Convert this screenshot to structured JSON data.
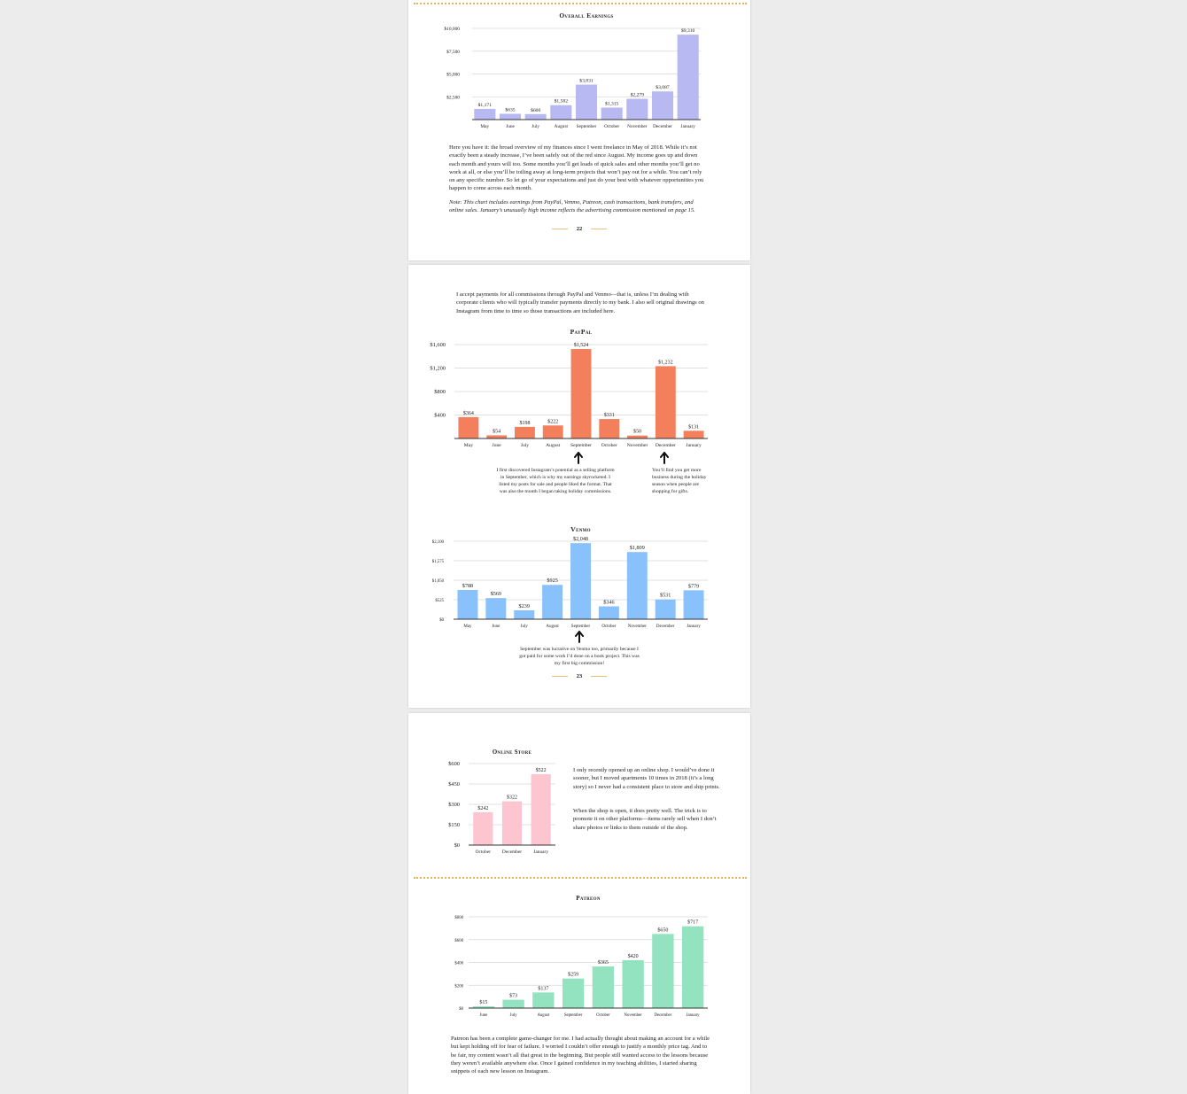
{
  "colors": {
    "overall": "#b8b9f2",
    "paypal": "#f37f5c",
    "venmo": "#88c1fc",
    "online_store": "#fdc5cf",
    "patreon": "#93e3c1",
    "dotted_rule": "#e3b65a",
    "page_rule": "#e6c27a"
  },
  "pages": [
    {
      "number": "22",
      "paragraph": "Here you have it: the broad overview of my finances since I went freelance in May of 2018. While it’s not exactly been a steady increase, I’ve been safely out of the red since August. My income goes up and down each month and yours will too. Some months you’ll get loads of quick sales and other months you’ll get no work at all, or else you’ll be toiling away at long-term projects that won’t pay out for a while. You can’t rely on any specific number. So let go of your expectations and just do your best with whatever opportunities you happen to come across each month.",
      "note": "Note: This chart includes earnings from PayPal, Venmo, Patreon, cash transactions, bank transfers, and online sales. January’s unusually high income reflects the advertising commission mentioned on page 15."
    },
    {
      "number": "23",
      "intro": "I accept payments for all commissions through PayPal and Venmo—that is, unless I’m dealing with corporate clients who will typically transfer payments directly to my bank. I also sell original drawings on Instagram from time to time so those transactions are included here.",
      "paypal_annotation_left": "I first discovered Instagram’s potential as a selling platform in September, which is why my earnings skyrocketed. I listed my posts for sale and people liked the format. That was also the month I began taking holiday commissions.",
      "paypal_annotation_right": "You’ll find you get more business during the holiday season when people are shopping for gifts.",
      "venmo_annotation": "September was lucrative on Venmo too, primarily because I got paid for some work I’d done on a book project. This was my first big commission!"
    },
    {
      "online_store_text_1": "I only recently opened up an online shop. I would’ve done it sooner, but I moved apartments 10 times in 2018 (it’s a long story) so I never had a consistent place to store and ship prints.",
      "online_store_text_2": "When the shop is open, it does pretty well. The trick is to promote it on other platforms—items rarely sell when I don’t share photos or links to them outside of the shop.",
      "patreon_text": "Patreon has been a complete game-changer for me. I had actually thought about making an account for a while but kept holding off for fear of failure. I worried I couldn’t offer enough to justify a monthly price tag. And to be fair, my content wasn’t all that great in the beginning. But people still wanted access to the lessons because they weren’t available anywhere else. Once I gained confidence in my teaching abilities, I started sharing snippets of each new lesson on Instagram."
    }
  ],
  "chart_data": [
    {
      "id": "overall",
      "type": "bar",
      "title": "Overall Earnings",
      "categories": [
        "May",
        "June",
        "July",
        "August",
        "September",
        "October",
        "November",
        "December",
        "January"
      ],
      "values": [
        1171,
        635,
        600,
        1582,
        3831,
        1315,
        2279,
        3087,
        9310
      ],
      "value_labels": [
        "$1,171",
        "$635",
        "$600",
        "$1,582",
        "$3,831",
        "$1,315",
        "$2,279",
        "$3,087",
        "$9,310"
      ],
      "ylim": [
        0,
        10000
      ],
      "y_ticks": [
        2500,
        5000,
        7500,
        10000
      ],
      "y_tick_labels": [
        "$2,500",
        "$5,000",
        "$7,500",
        "$10,000"
      ],
      "grid": true
    },
    {
      "id": "paypal",
      "type": "bar",
      "title": "PayPal",
      "categories": [
        "May",
        "June",
        "July",
        "August",
        "September",
        "October",
        "November",
        "December",
        "January"
      ],
      "values": [
        364,
        54,
        198,
        222,
        1524,
        331,
        50,
        1232,
        131
      ],
      "value_labels": [
        "$364",
        "$54",
        "$198",
        "$222",
        "$1,524",
        "$331",
        "$50",
        "$1,232",
        "$131"
      ],
      "ylim": [
        0,
        1600
      ],
      "y_ticks": [
        400,
        800,
        1200,
        1600
      ],
      "y_tick_labels": [
        "$400",
        "$800",
        "$1,200",
        "$1,600"
      ],
      "grid": true
    },
    {
      "id": "venmo",
      "type": "bar",
      "title": "Venmo",
      "categories": [
        "May",
        "June",
        "July",
        "August",
        "September",
        "October",
        "November",
        "December",
        "January"
      ],
      "values": [
        788,
        569,
        239,
        925,
        2048,
        346,
        1809,
        531,
        779
      ],
      "value_labels": [
        "$788",
        "$569",
        "$239",
        "$925",
        "$2,048",
        "$346",
        "$1,809",
        "$531",
        "$779"
      ],
      "ylim": [
        0,
        2100
      ],
      "y_ticks": [
        0,
        525,
        1050,
        1575,
        2100
      ],
      "y_tick_labels": [
        "$0",
        "$525",
        "$1,050",
        "$1,575",
        "$2,100"
      ],
      "grid": true
    },
    {
      "id": "online_store",
      "type": "bar",
      "title": "Online Store",
      "categories": [
        "October",
        "December",
        "January"
      ],
      "values": [
        242,
        322,
        522
      ],
      "value_labels": [
        "$242",
        "$322",
        "$522"
      ],
      "ylim": [
        0,
        600
      ],
      "y_ticks": [
        0,
        150,
        300,
        450,
        600
      ],
      "y_tick_labels": [
        "$0",
        "$150",
        "$300",
        "$450",
        "$600"
      ],
      "grid": true
    },
    {
      "id": "patreon",
      "type": "bar",
      "title": "Patreon",
      "categories": [
        "June",
        "July",
        "August",
        "September",
        "October",
        "November",
        "December",
        "January"
      ],
      "values": [
        15,
        73,
        137,
        259,
        365,
        420,
        650,
        717
      ],
      "value_labels": [
        "$15",
        "$73",
        "$137",
        "$259",
        "$365",
        "$420",
        "$650",
        "$717"
      ],
      "ylim": [
        0,
        800
      ],
      "y_ticks": [
        0,
        200,
        400,
        600,
        800
      ],
      "y_tick_labels": [
        "$0",
        "$200",
        "$400",
        "$600",
        "$800"
      ],
      "grid": true
    }
  ]
}
